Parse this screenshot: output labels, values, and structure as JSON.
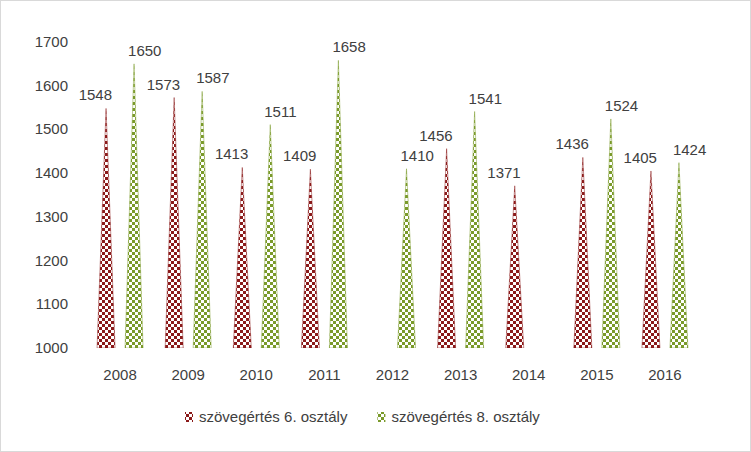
{
  "chart_data": {
    "type": "bar",
    "categories": [
      "2008",
      "2009",
      "2010",
      "2011",
      "2012",
      "2013",
      "2014",
      "2015",
      "2016"
    ],
    "series": [
      {
        "name": "szövegértés 6. osztály",
        "color": "#8b1a1a",
        "values": [
          1548,
          1573,
          1413,
          1409,
          null,
          1456,
          1371,
          1436,
          1405
        ]
      },
      {
        "name": "szövegértés 8. osztály",
        "color": "#7a9a2a",
        "values": [
          1650,
          1587,
          1511,
          1658,
          1410,
          1541,
          null,
          1524,
          1424
        ]
      }
    ],
    "ylim": [
      1000,
      1700
    ],
    "yticks": [
      1000,
      1100,
      1200,
      1300,
      1400,
      1500,
      1600,
      1700
    ],
    "grid": false,
    "legend": "bottom",
    "data_labels": true
  }
}
